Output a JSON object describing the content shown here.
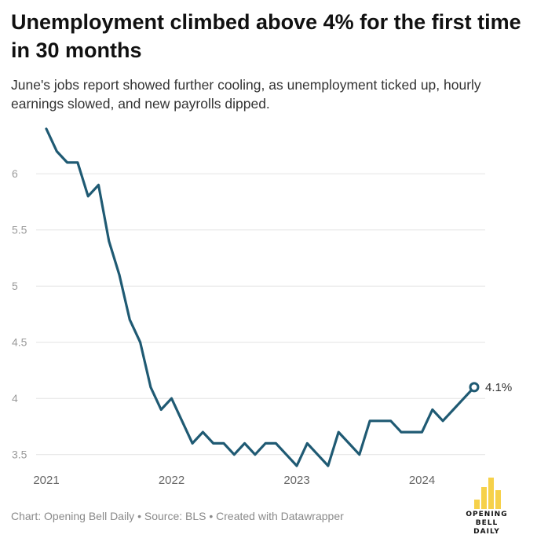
{
  "header": {
    "title": "Unemployment climbed above 4% for the first time in 30 months",
    "subtitle": "June's jobs report showed further cooling, as unemployment ticked up, hourly earnings slowed, and new payrolls dipped."
  },
  "footer": {
    "credit": "Chart: Opening Bell Daily • Source: BLS • Created with Datawrapper"
  },
  "logo": {
    "line1": "OPENING BELL",
    "line2": "DAILY"
  },
  "colors": {
    "line": "#1f5a73",
    "grid": "#e3e3e3",
    "tick": "#9a9a9a",
    "logo": "#f6d14a"
  },
  "chart_data": {
    "type": "line",
    "title": "Unemployment climbed above 4% for the first time in 30 months",
    "subtitle": "June's jobs report showed further cooling, as unemployment ticked up, hourly earnings slowed, and new payrolls dipped.",
    "xlabel": "",
    "ylabel": "",
    "x_range": [
      "2021-01",
      "2024-06"
    ],
    "x_ticks": [
      "2021",
      "2022",
      "2023",
      "2024"
    ],
    "ylim": [
      3.4,
      6.4
    ],
    "y_ticks": [
      "3.5",
      "4",
      "4.5",
      "5",
      "5.5",
      "6"
    ],
    "grid": "horizontal",
    "series": [
      {
        "x": [
          "2021-01",
          "2021-02",
          "2021-03",
          "2021-04",
          "2021-05",
          "2021-06",
          "2021-07",
          "2021-08",
          "2021-09",
          "2021-10",
          "2021-11",
          "2021-12",
          "2022-01",
          "2022-02",
          "2022-03",
          "2022-04",
          "2022-05",
          "2022-06",
          "2022-07",
          "2022-08",
          "2022-09",
          "2022-10",
          "2022-11",
          "2022-12",
          "2023-01",
          "2023-02",
          "2023-03",
          "2023-04",
          "2023-05",
          "2023-06",
          "2023-07",
          "2023-08",
          "2023-09",
          "2023-10",
          "2023-11",
          "2023-12",
          "2024-01",
          "2024-02",
          "2024-03",
          "2024-04",
          "2024-05",
          "2024-06"
        ],
        "values": [
          6.4,
          6.2,
          6.1,
          6.1,
          5.8,
          5.9,
          5.4,
          5.1,
          4.7,
          4.5,
          4.1,
          3.9,
          4.0,
          3.8,
          3.6,
          3.7,
          3.6,
          3.6,
          3.5,
          3.6,
          3.5,
          3.6,
          3.6,
          3.5,
          3.4,
          3.6,
          3.5,
          3.4,
          3.7,
          3.6,
          3.5,
          3.8,
          3.8,
          3.8,
          3.7,
          3.7,
          3.7,
          3.9,
          3.8,
          3.9,
          4.0,
          4.1
        ]
      }
    ],
    "annotations": [
      {
        "x": "2024-06",
        "value": 4.1,
        "label": "4.1%"
      }
    ]
  }
}
